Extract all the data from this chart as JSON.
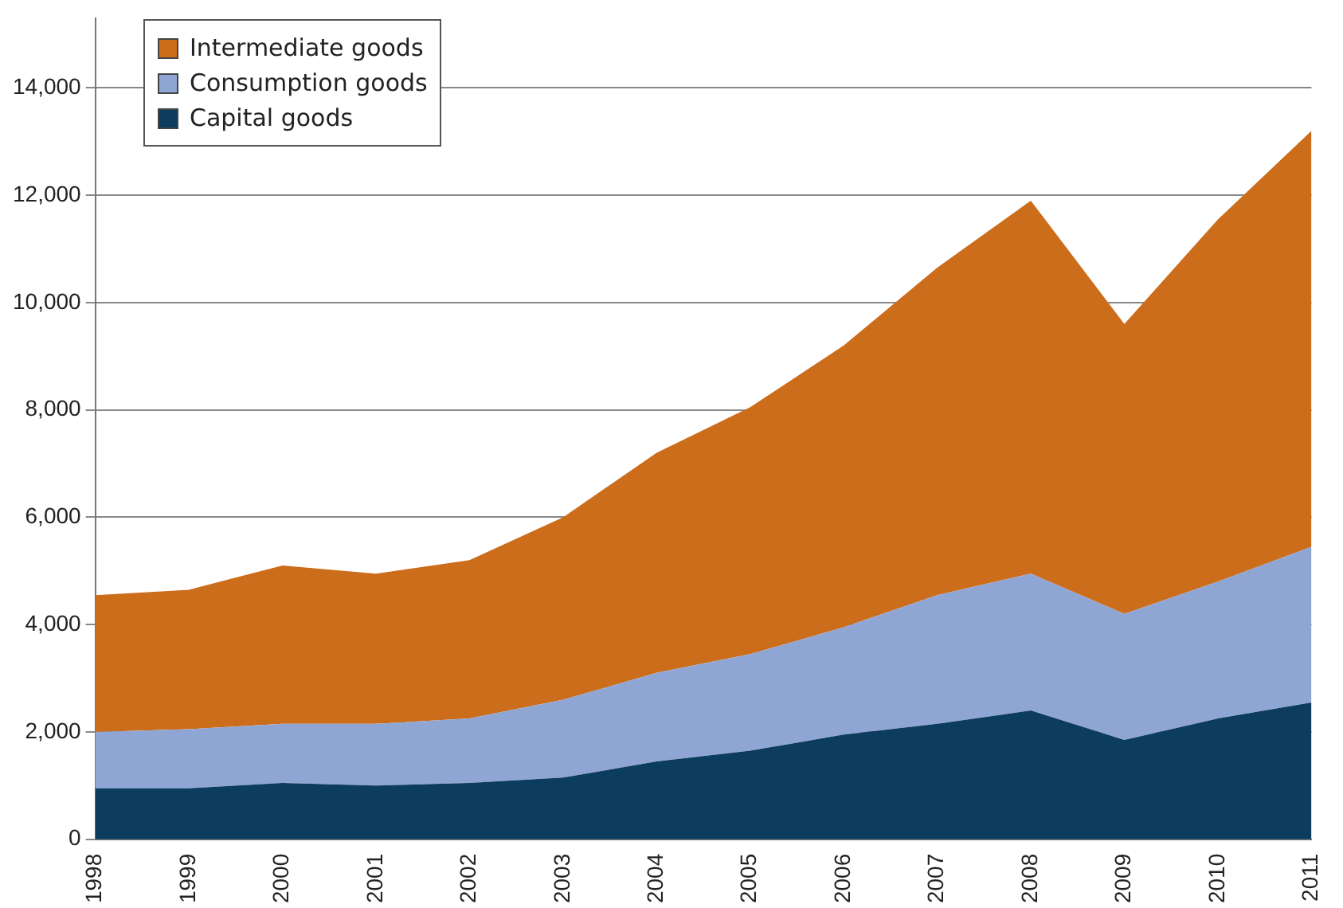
{
  "chart_data": {
    "type": "area",
    "stacked": true,
    "categories": [
      "1998",
      "1999",
      "2000",
      "2001",
      "2002",
      "2003",
      "2004",
      "2005",
      "2006",
      "2007",
      "2008",
      "2009",
      "2010",
      "2011"
    ],
    "series": [
      {
        "name": "Capital goods",
        "color": "#0c3c5e",
        "values": [
          950,
          950,
          1050,
          1000,
          1050,
          1150,
          1450,
          1650,
          1950,
          2150,
          2400,
          1850,
          2250,
          2550
        ]
      },
      {
        "name": "Consumption goods",
        "color": "#8fa6d4",
        "values": [
          1050,
          1100,
          1100,
          1150,
          1200,
          1450,
          1650,
          1800,
          2000,
          2400,
          2550,
          2350,
          2550,
          2900
        ]
      },
      {
        "name": "Intermediate goods",
        "color": "#cc6d1c",
        "values": [
          2550,
          2600,
          2950,
          2800,
          2950,
          3400,
          4100,
          4600,
          5250,
          6100,
          6950,
          5400,
          6750,
          7750
        ]
      }
    ],
    "ylim": [
      0,
      15300
    ],
    "yticks": [
      {
        "value": 0,
        "label": "0"
      },
      {
        "value": 2000,
        "label": "2,000"
      },
      {
        "value": 4000,
        "label": "4,000"
      },
      {
        "value": 6000,
        "label": "6,000"
      },
      {
        "value": 8000,
        "label": "8,000"
      },
      {
        "value": 10000,
        "label": "10,000"
      },
      {
        "value": 12000,
        "label": "12,000"
      },
      {
        "value": 14000,
        "label": "14,000"
      }
    ],
    "grid": "y",
    "legend": "top left"
  }
}
